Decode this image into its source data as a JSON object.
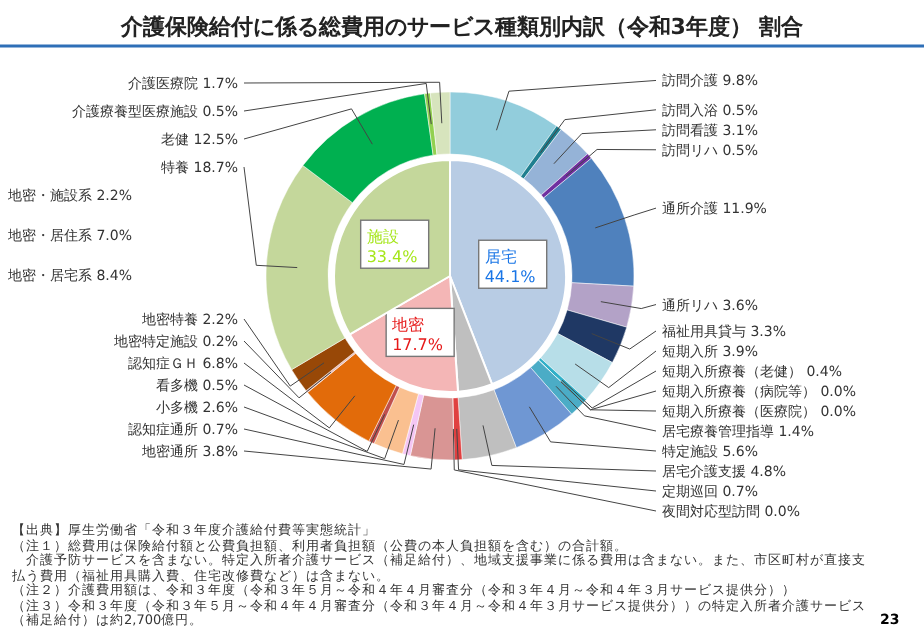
{
  "chart_data": [
    {
      "type": "donut",
      "title": "介護保険給付に係る総費用のサービス種類別内訳（令和3年度） 割合",
      "categories": [
        "訪問介護",
        "訪問入浴",
        "訪問看護",
        "訪問リハ",
        "通所介護",
        "通所リハ",
        "福祉用具貸与",
        "短期入所",
        "短期入所療養（老健）",
        "短期入所療養（病院等）",
        "短期入所療養（医療院）",
        "居宅療養管理指導",
        "特定施設",
        "居宅介護支援",
        "定期巡回",
        "夜間対応型訪問",
        "地密通所",
        "認知症通所",
        "小多機",
        "看多機",
        "認知症ＧＨ",
        "地密特定施設",
        "地密特養",
        "特養",
        "老健",
        "介護療養型医療施設",
        "介護医療院"
      ],
      "values": [
        9.8,
        0.5,
        3.1,
        0.5,
        11.9,
        3.6,
        3.3,
        3.9,
        0.4,
        0.0,
        0.0,
        1.4,
        5.6,
        4.8,
        0.7,
        0.0,
        3.8,
        0.7,
        2.6,
        0.5,
        6.8,
        0.2,
        2.2,
        18.7,
        12.5,
        0.5,
        1.7
      ],
      "value_labels": [
        "9.8%",
        "0.5%",
        "3.1%",
        "0.5%",
        "11.9%",
        "3.6%",
        "3.3%",
        "3.9%",
        "0.4%",
        "0.0%",
        "0.0%",
        "1.4%",
        "5.6%",
        "4.8%",
        "0.7%",
        "0.0%",
        "3.8%",
        "0.7%",
        "2.6%",
        "0.5%",
        "6.8%",
        "0.2%",
        "2.2%",
        "18.7%",
        "12.5%",
        "0.5%",
        "1.7%"
      ],
      "colors": [
        "#92cddc",
        "#1f7f8f",
        "#95b3d7",
        "#7030a0",
        "#4f81bd",
        "#b3a2c7",
        "#1f3864",
        "#b7dee8",
        "#31b0c8",
        "#17a2b8",
        "#215968",
        "#4bacc6",
        "#6f97d3",
        "#bfbfbf",
        "#e04040",
        "#c00000",
        "#d99594",
        "#f4c6f4",
        "#fac090",
        "#c0504d",
        "#e26b0a",
        "#e6b9b8",
        "#984807",
        "#c4d79b",
        "#00b050",
        "#92d050",
        "#d7e4bd"
      ],
      "annotations": [
        "地密・施設系 2.2%",
        "地密・居住系 7.0%",
        "地密・居宅系 8.4%",
        "【出典】厚生労働省「令和３年度介護給付費等実態統計」",
        "（注１）総費用は保険給付額と公費負担額、利用者負担額（公費の本人負担額を含む）の合計額。",
        "　介護予防サービスを含まない。特定入所者介護サービス（補足給付）、地域支援事業に係る費用は含まない。また、市区町村が直接支払う費用（福祉用具購入費、住宅改修費など）は含まない。",
        "（注２）介護費用額は、令和３年度（令和３年５月～令和４年４月審査分（令和３年４月～令和４年３月サービス提供分））",
        "（注３）令和３年度（令和３年５月～令和４年４月審査分（令和３年４月～令和４年３月サービス提供分））の特定入所者介護サービス（補足給付）は約2,700億円。",
        "23"
      ]
    },
    {
      "type": "pie",
      "categories": [
        "居宅",
        null,
        "地密",
        "施設"
      ],
      "values": [
        44.1,
        4.8,
        17.7,
        33.4
      ],
      "value_labels": [
        "44.1%",
        null,
        "17.7%",
        "33.4%"
      ],
      "colors": [
        "#b8cce4",
        "#bfbfbf",
        "#f4b6b6",
        "#c4d79b"
      ]
    }
  ]
}
